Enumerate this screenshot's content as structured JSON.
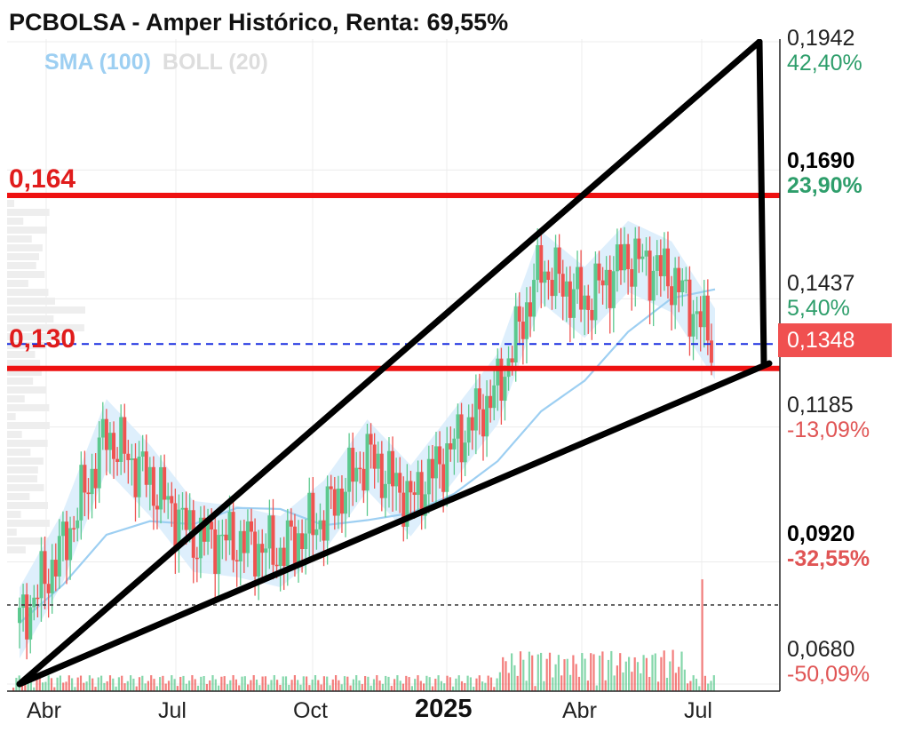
{
  "title": "PCBOLSA - Amper Histórico, Renta: 69,55%",
  "legend": {
    "sma": "SMA (100)",
    "boll": "BOLL (20)"
  },
  "current_price": "0,1348",
  "y_axis": [
    {
      "price": "0,1942",
      "pct": "42,40%",
      "sign": "pos",
      "bold": false
    },
    {
      "price": "0,1690",
      "pct": "23,90%",
      "sign": "pos",
      "bold": true
    },
    {
      "price": "0,1437",
      "pct": "5,40%",
      "sign": "pos",
      "bold": false
    },
    {
      "price": "0,1185",
      "pct": "-13,09%",
      "sign": "neg",
      "bold": false
    },
    {
      "price": "0,0920",
      "pct": "-32,55%",
      "sign": "neg",
      "bold": true
    },
    {
      "price": "0,0680",
      "pct": "-50,09%",
      "sign": "neg",
      "bold": false
    }
  ],
  "x_axis": [
    "Abr",
    "Jul",
    "Oct",
    "2025",
    "Abr",
    "Jul"
  ],
  "levels": {
    "upper": "0,164",
    "lower": "0,130"
  },
  "colors": {
    "up": "#5cc98f",
    "down": "#ef5350",
    "level": "#ee1111",
    "band": "#d6ebfb",
    "sma": "#9dcff2",
    "trend": "#000000",
    "current": "#1a2fe0"
  },
  "chart_data": {
    "type": "candlestick",
    "title": "PCBOLSA - Amper Histórico, Renta: 69,55%",
    "ylim": [
      0.068,
      0.1942
    ],
    "x_ticks": [
      "Abr",
      "Jul",
      "Oct",
      "2025",
      "Abr",
      "Jul"
    ],
    "horizontal_levels": [
      0.164,
      0.13
    ],
    "current_price": 0.1348,
    "trendlines": [
      {
        "from": [
          "Mar 2024",
          0.068
        ],
        "to": [
          "Sep 2025",
          0.1942
        ]
      },
      {
        "from": [
          "Mar 2024",
          0.068
        ],
        "to": [
          "Sep 2025",
          0.131
        ]
      }
    ],
    "close_series": [
      {
        "x": "Mar 2024",
        "y": 0.08
      },
      {
        "x": "Abr 2024",
        "y": 0.095
      },
      {
        "x": "May 2024",
        "y": 0.117
      },
      {
        "x": "Jun 2024",
        "y": 0.108
      },
      {
        "x": "Jul 2024",
        "y": 0.097
      },
      {
        "x": "Ago 2024",
        "y": 0.096
      },
      {
        "x": "Sep 2024",
        "y": 0.094
      },
      {
        "x": "Oct 2024",
        "y": 0.101
      },
      {
        "x": "Nov 2024",
        "y": 0.113
      },
      {
        "x": "Dic 2024",
        "y": 0.104
      },
      {
        "x": "Ene 2025",
        "y": 0.115
      },
      {
        "x": "Feb 2025",
        "y": 0.126
      },
      {
        "x": "Mar 2025",
        "y": 0.15
      },
      {
        "x": "Abr 2025",
        "y": 0.143
      },
      {
        "x": "May 2025",
        "y": 0.152
      },
      {
        "x": "Jun 2025",
        "y": 0.148
      },
      {
        "x": "Jul 2025",
        "y": 0.1348
      }
    ]
  }
}
